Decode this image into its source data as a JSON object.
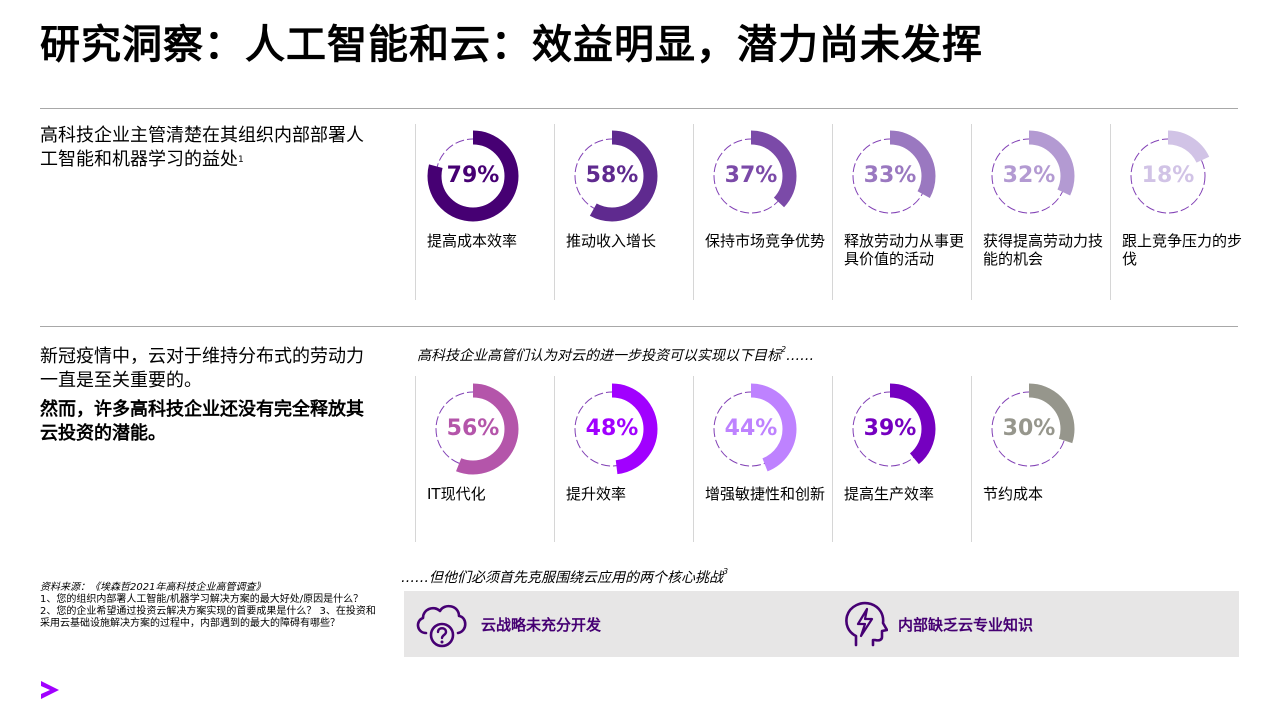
{
  "title": "研究洞察：人工智能和云：效益明显，潜力尚未发挥",
  "section1": {
    "intro": "高科技企业主管清楚在其组织内部部署人工智能和机器学习的益处",
    "intro_footnote": "1",
    "items": [
      {
        "value": 79,
        "display": "79%",
        "label": "提高成本效率",
        "color": "#460073"
      },
      {
        "value": 58,
        "display": "58%",
        "label": "推动收入增长",
        "color": "#5f2a8f"
      },
      {
        "value": 37,
        "display": "37%",
        "label": "保持市场竞争优势",
        "color": "#7b4aa8"
      },
      {
        "value": 33,
        "display": "33%",
        "label": "释放劳动力从事更具价值的活动",
        "color": "#9a78c0"
      },
      {
        "value": 32,
        "display": "32%",
        "label": "获得提高劳动力技能的机会",
        "color": "#b39ad2"
      },
      {
        "value": 18,
        "display": "18%",
        "label": "跟上竞争压力的步伐",
        "color": "#d1c3e6"
      }
    ]
  },
  "section2": {
    "intro": "新冠疫情中，云对于维持分布式的劳动力一直是至关重要的。",
    "intro_bold": "然而，许多高科技企业还没有完全释放其云投资的潜能。",
    "subhead": "高科技企业高管们认为对云的进一步投资可以实现以下目标",
    "subhead_footnote": "2",
    "subhead_suffix": "……",
    "items": [
      {
        "value": 56,
        "display": "56%",
        "label": "IT现代化",
        "color": "#b455aa"
      },
      {
        "value": 48,
        "display": "48%",
        "label": "提升效率",
        "color": "#a100ff"
      },
      {
        "value": 44,
        "display": "44%",
        "label": "增强敏捷性和创新",
        "color": "#be82ff"
      },
      {
        "value": 39,
        "display": "39%",
        "label": "提高生产效率",
        "color": "#7500c0"
      },
      {
        "value": 30,
        "display": "30%",
        "label": "节约成本",
        "color": "#96968c"
      }
    ]
  },
  "section3": {
    "subhead": "……但他们必须首先克服围绕云应用的两个核心挑战",
    "subhead_footnote": "3",
    "challenges": [
      {
        "icon": "cloud-question-icon",
        "label": "云战略未充分开发"
      },
      {
        "icon": "head-lightning-icon",
        "label": "内部缺乏云专业知识"
      }
    ]
  },
  "sources": {
    "title": "资料来源：《埃森哲2021年高科技企业高管调查》",
    "body": "1、您的组织内部署人工智能/机器学习解决方案的最大好处/原因是什么？ 2、您的企业希望通过投资云解决方案实现的首要成果是什么？ 3、在投资和采用云基础设施解决方案的过程中，内部遇到的最大的障碍有哪些？"
  },
  "colors": {
    "accent": "#a100ff",
    "dark_purple": "#460073",
    "track": "#6b1fa8",
    "box_bg": "#e7e6e6"
  }
}
